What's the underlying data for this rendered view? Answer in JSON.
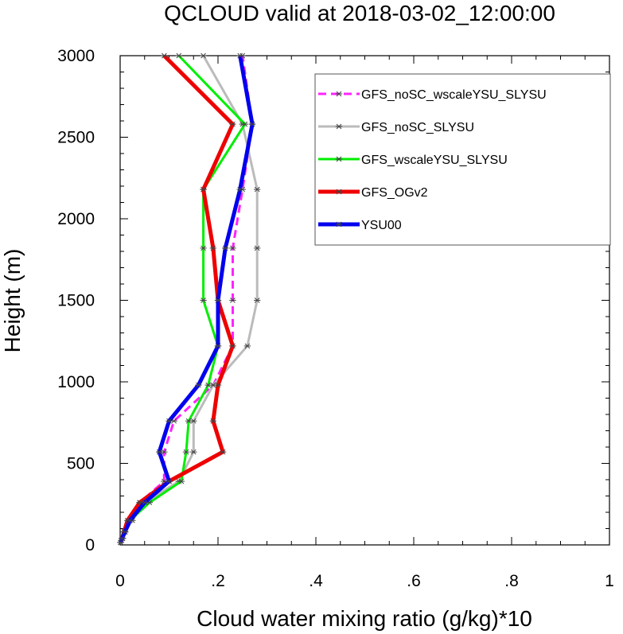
{
  "chart_data": {
    "type": "line",
    "title": "QCLOUD valid at 2018-03-02_12:00:00",
    "xlabel": "Cloud water mixing ratio (g/kg)*10",
    "ylabel": "Height (m)",
    "xlim": [
      0,
      1
    ],
    "ylim": [
      0,
      3000
    ],
    "xticks": [
      0,
      0.2,
      0.4,
      0.6,
      0.8,
      1
    ],
    "xtick_labels": [
      "0",
      ".2",
      ".4",
      ".6",
      ".8",
      "1"
    ],
    "yticks": [
      0,
      500,
      1000,
      1500,
      2000,
      2500,
      3000
    ],
    "ytick_labels": [
      "0",
      "500",
      "1000",
      "1500",
      "2000",
      "2500",
      "3000"
    ],
    "grid": false,
    "legend_position": "top-right",
    "height_levels": [
      15,
      40,
      80,
      150,
      260,
      390,
      570,
      760,
      980,
      1220,
      1500,
      1820,
      2180,
      2580,
      3000
    ],
    "series": [
      {
        "name": "GFS_noSC_wscaleYSU_SLYSU",
        "color": "#ff22ff",
        "dash": "dash",
        "values": [
          0.001,
          0.004,
          0.008,
          0.02,
          0.04,
          0.09,
          0.09,
          0.11,
          0.19,
          0.23,
          0.23,
          0.23,
          0.25,
          0.27,
          0.25
        ]
      },
      {
        "name": "GFS_noSC_SLYSU",
        "color": "#bbbbbb",
        "dash": "solid",
        "values": [
          0.001,
          0.005,
          0.01,
          0.025,
          0.05,
          0.12,
          0.15,
          0.15,
          0.19,
          0.26,
          0.28,
          0.28,
          0.28,
          0.25,
          0.17
        ]
      },
      {
        "name": "GFS_wscaleYSU_SLYSU",
        "color": "#00ee00",
        "dash": "solid",
        "values": [
          0.001,
          0.005,
          0.01,
          0.02,
          0.06,
          0.125,
          0.135,
          0.14,
          0.18,
          0.2,
          0.17,
          0.17,
          0.17,
          0.255,
          0.12
        ]
      },
      {
        "name": "GFS_OGv2",
        "color": "#ee0000",
        "dash": "solid",
        "values": [
          0.001,
          0.004,
          0.008,
          0.015,
          0.04,
          0.1,
          0.21,
          0.19,
          0.2,
          0.23,
          0.2,
          0.19,
          0.17,
          0.23,
          0.09
        ]
      },
      {
        "name": "YSU00",
        "color": "#0000ee",
        "dash": "solid",
        "values": [
          0.001,
          0.004,
          0.01,
          0.02,
          0.05,
          0.1,
          0.08,
          0.1,
          0.16,
          0.2,
          0.2,
          0.215,
          0.245,
          0.27,
          0.245
        ]
      }
    ]
  }
}
